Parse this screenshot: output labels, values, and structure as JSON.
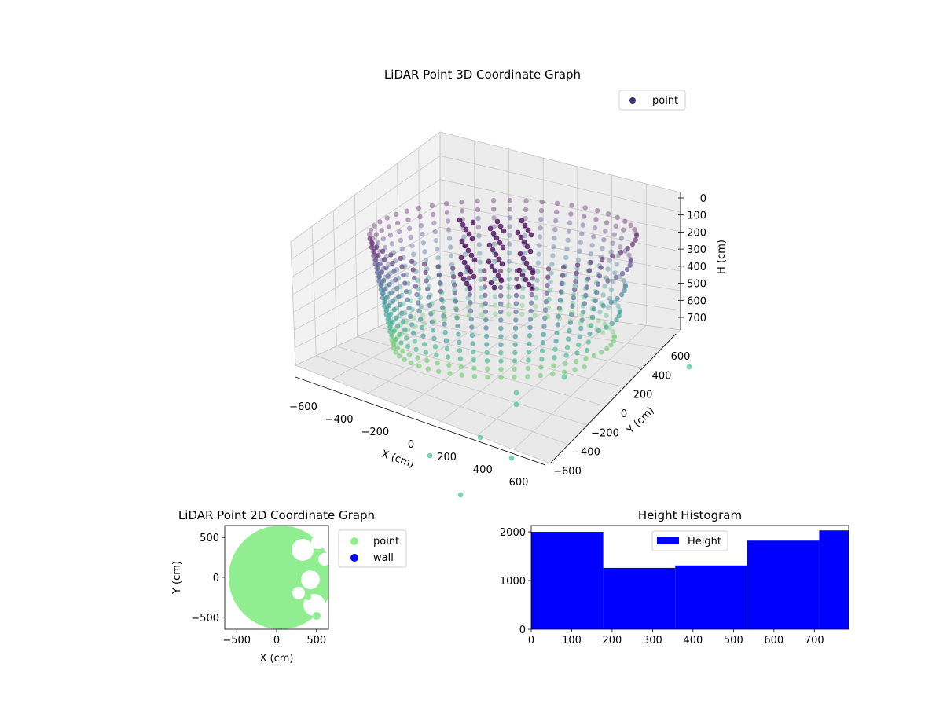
{
  "chart_data": [
    {
      "type": "scatter",
      "title": "LiDAR Point 3D Coordinate Graph",
      "xlabel": "X (cm)",
      "ylabel": "Y (cm)",
      "zlabel": "H (cm)",
      "x_ticks": [
        "−600",
        "−400",
        "−200",
        "0",
        "200",
        "400",
        "600"
      ],
      "y_ticks": [
        "−600",
        "−400",
        "−200",
        "0",
        "200",
        "400",
        "600"
      ],
      "z_ticks": [
        "0",
        "100",
        "200",
        "300",
        "400",
        "500",
        "600",
        "700"
      ],
      "xlim": [
        -650,
        650
      ],
      "ylim": [
        -650,
        650
      ],
      "zlim": [
        0,
        780
      ],
      "z_inverted": true,
      "grid": true,
      "legend": {
        "position": "top-right",
        "entries": [
          {
            "name": "point",
            "color": "#3b2f7f"
          }
        ]
      },
      "colormap": "viridis",
      "description_of_shape": "cylindrical wall of points, radius ~650 cm, with interior clusters and scattered outliers"
    },
    {
      "type": "scatter",
      "title": "LiDAR Point 2D Coordinate Graph",
      "xlabel": "X (cm)",
      "ylabel": "Y (cm)",
      "x_ticks": [
        "−500",
        "0",
        "500"
      ],
      "y_ticks": [
        "500",
        "0",
        "−500"
      ],
      "xlim": [
        -650,
        650
      ],
      "ylim": [
        -650,
        650
      ],
      "legend": {
        "position": "outside-right",
        "entries": [
          {
            "name": "point",
            "color": "#90ee90"
          },
          {
            "name": "wall",
            "color": "#0000ff"
          }
        ]
      }
    },
    {
      "type": "bar",
      "title": "Height Histogram",
      "xlabel": "",
      "ylabel": "",
      "x_ticks": [
        "0",
        "100",
        "200",
        "300",
        "400",
        "500",
        "600",
        "700"
      ],
      "y_ticks": [
        "0",
        "1000",
        "2000"
      ],
      "xlim": [
        0,
        785
      ],
      "ylim": [
        0,
        2130
      ],
      "bins": [
        {
          "from": 0,
          "to": 178,
          "count": 2000
        },
        {
          "from": 178,
          "to": 356,
          "count": 1260
        },
        {
          "from": 356,
          "to": 534,
          "count": 1310
        },
        {
          "from": 534,
          "to": 712,
          "count": 1820
        },
        {
          "from": 712,
          "to": 785,
          "count": 2030
        }
      ],
      "color": "#0000ff",
      "legend": {
        "position": "top-center",
        "entries": [
          {
            "name": "Height",
            "color": "#0000ff"
          }
        ]
      }
    }
  ]
}
